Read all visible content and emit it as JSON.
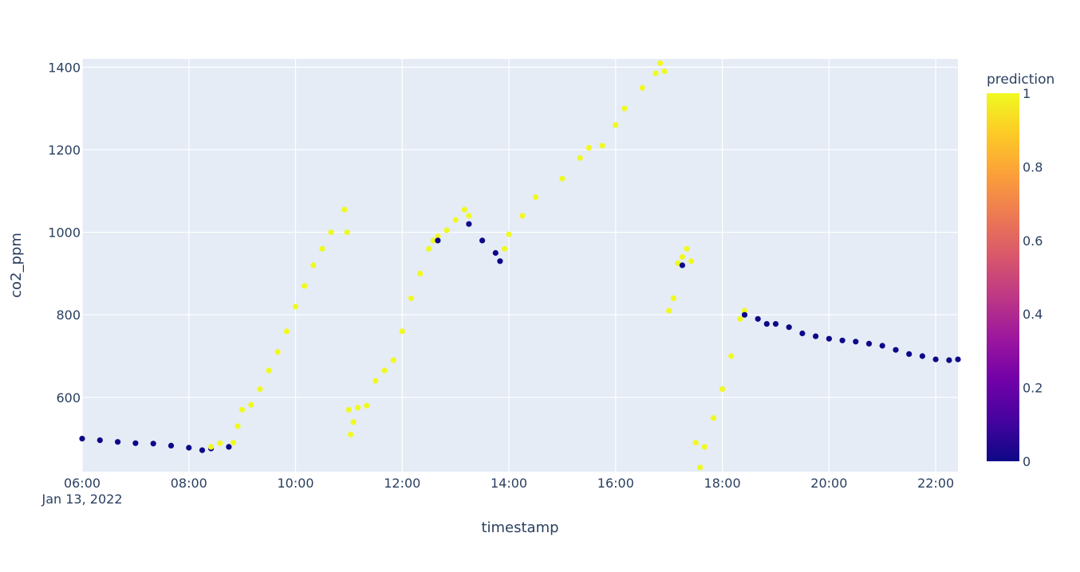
{
  "chart_data": {
    "type": "scatter",
    "title": "",
    "xlabel": "timestamp",
    "ylabel": "co2_ppm",
    "x_date_label": "Jan 13, 2022",
    "xlim": [
      "06:00",
      "22:25"
    ],
    "ylim": [
      420,
      1420
    ],
    "x_ticks": [
      "06:00",
      "08:00",
      "10:00",
      "12:00",
      "14:00",
      "16:00",
      "18:00",
      "20:00",
      "22:00"
    ],
    "y_ticks": [
      600,
      800,
      1000,
      1200,
      1400
    ],
    "grid": true,
    "colorbar": {
      "title": "prediction",
      "range": [
        0,
        1
      ],
      "ticks": [
        "0",
        "0.2",
        "0.4",
        "0.6",
        "0.8",
        "1"
      ],
      "colors": [
        "#0d0887",
        "#46039f",
        "#7201a8",
        "#9c179e",
        "#bd3786",
        "#d8576b",
        "#ed7953",
        "#fb9f3a",
        "#fdca26",
        "#f0f921"
      ]
    },
    "point_colors": {
      "0": "#0d0887",
      "1": "#f0f921"
    },
    "series": [
      {
        "prediction": 0,
        "points": [
          [
            "06:00",
            500
          ],
          [
            "06:20",
            496
          ],
          [
            "06:40",
            492
          ],
          [
            "07:00",
            489
          ],
          [
            "07:20",
            488
          ],
          [
            "07:40",
            483
          ],
          [
            "08:00",
            478
          ],
          [
            "08:15",
            472
          ],
          [
            "08:25",
            476
          ]
        ]
      },
      {
        "prediction": 1,
        "points": [
          [
            "08:25",
            480
          ],
          [
            "08:35",
            489
          ],
          [
            "08:50",
            490
          ],
          [
            "08:55",
            530
          ],
          [
            "09:00",
            570
          ],
          [
            "09:10",
            582
          ],
          [
            "09:20",
            620
          ],
          [
            "09:30",
            665
          ],
          [
            "09:40",
            710
          ],
          [
            "09:50",
            760
          ],
          [
            "10:00",
            820
          ],
          [
            "10:10",
            870
          ],
          [
            "10:20",
            920
          ],
          [
            "10:30",
            960
          ],
          [
            "10:40",
            1000
          ],
          [
            "10:55",
            1055
          ],
          [
            "10:58",
            1000
          ]
        ]
      },
      {
        "prediction": 0,
        "points": [
          [
            "08:45",
            480
          ]
        ]
      },
      {
        "prediction": 1,
        "points": [
          [
            "11:00",
            570
          ],
          [
            "11:02",
            510
          ],
          [
            "11:05",
            540
          ],
          [
            "11:10",
            575
          ],
          [
            "11:20",
            580
          ],
          [
            "11:30",
            640
          ],
          [
            "11:40",
            665
          ],
          [
            "11:50",
            690
          ],
          [
            "12:00",
            760
          ],
          [
            "12:10",
            840
          ],
          [
            "12:20",
            900
          ],
          [
            "12:30",
            960
          ],
          [
            "12:35",
            980
          ],
          [
            "12:40",
            990
          ],
          [
            "12:50",
            1005
          ],
          [
            "13:00",
            1030
          ],
          [
            "13:10",
            1055
          ],
          [
            "13:15",
            1040
          ]
        ]
      },
      {
        "prediction": 0,
        "points": [
          [
            "12:40",
            980
          ],
          [
            "13:15",
            1020
          ],
          [
            "13:30",
            980
          ],
          [
            "13:45",
            950
          ],
          [
            "13:50",
            930
          ]
        ]
      },
      {
        "prediction": 1,
        "points": [
          [
            "13:55",
            960
          ],
          [
            "14:00",
            995
          ],
          [
            "14:15",
            1040
          ],
          [
            "14:30",
            1085
          ],
          [
            "15:00",
            1130
          ],
          [
            "15:20",
            1180
          ],
          [
            "15:30",
            1205
          ],
          [
            "15:45",
            1210
          ],
          [
            "16:00",
            1260
          ],
          [
            "16:10",
            1300
          ],
          [
            "16:30",
            1350
          ],
          [
            "16:45",
            1385
          ],
          [
            "16:50",
            1410
          ],
          [
            "16:55",
            1390
          ],
          [
            "17:00",
            810
          ],
          [
            "17:05",
            840
          ],
          [
            "17:10",
            925
          ],
          [
            "17:15",
            940
          ],
          [
            "17:20",
            960
          ],
          [
            "17:25",
            930
          ],
          [
            "17:30",
            490
          ],
          [
            "17:35",
            430
          ],
          [
            "17:40",
            480
          ],
          [
            "17:50",
            550
          ],
          [
            "18:00",
            620
          ],
          [
            "18:10",
            700
          ],
          [
            "18:20",
            790
          ],
          [
            "18:25",
            810
          ]
        ]
      },
      {
        "prediction": 0,
        "points": [
          [
            "17:15",
            920
          ],
          [
            "18:25",
            800
          ],
          [
            "18:40",
            790
          ],
          [
            "18:50",
            778
          ],
          [
            "19:00",
            778
          ],
          [
            "19:15",
            770
          ],
          [
            "19:30",
            755
          ],
          [
            "19:45",
            748
          ],
          [
            "20:00",
            742
          ],
          [
            "20:15",
            738
          ],
          [
            "20:30",
            735
          ],
          [
            "20:45",
            730
          ],
          [
            "21:00",
            725
          ],
          [
            "21:15",
            715
          ],
          [
            "21:30",
            705
          ],
          [
            "21:45",
            700
          ],
          [
            "22:00",
            692
          ],
          [
            "22:15",
            690
          ],
          [
            "22:25",
            692
          ]
        ]
      }
    ]
  }
}
